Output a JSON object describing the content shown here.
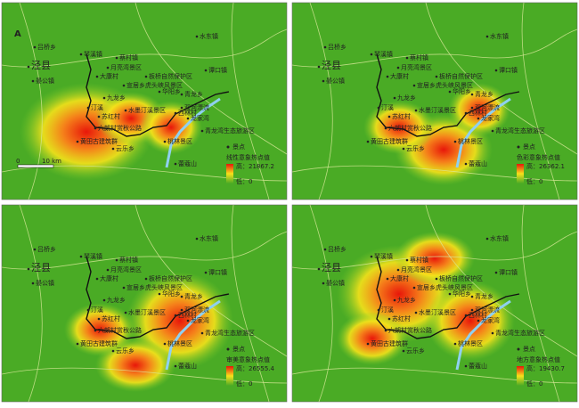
{
  "places": [
    {
      "name": "吕桥乡"
    },
    {
      "name": "琴溪镇"
    },
    {
      "name": "蔡村镇"
    },
    {
      "name": "水东镇"
    },
    {
      "name": "月亮湾景区"
    },
    {
      "name": "大康村"
    },
    {
      "name": "板桥自然保护区"
    },
    {
      "name": "泾县"
    },
    {
      "name": "宣居乡虎头峡风景区"
    },
    {
      "name": "谭口镇"
    },
    {
      "name": "晏公镇"
    },
    {
      "name": "华阳乡"
    },
    {
      "name": "青龙乡"
    },
    {
      "name": "双河漂流"
    },
    {
      "name": "九龙乡"
    },
    {
      "name": "汀溪"
    },
    {
      "name": "水墨汀溪景区"
    },
    {
      "name": "西林村"
    },
    {
      "name": "龙家湾"
    },
    {
      "name": "苏红村"
    },
    {
      "name": "六朗村赏秋公路"
    },
    {
      "name": "青龙湾生态旅游区"
    },
    {
      "name": "黄田古建筑群"
    },
    {
      "name": "云乐乡"
    },
    {
      "name": "桃林景区"
    },
    {
      "name": "蕾蔻山"
    }
  ],
  "north": "A",
  "scale": {
    "zero": "0",
    "dist": "10 km"
  },
  "panels": [
    {
      "legend_point": "景点",
      "legend_title": "线性意象热点值",
      "high": "高：21867.2",
      "low": "低：0"
    },
    {
      "legend_point": "景点",
      "legend_title": "色彩意象热点值",
      "high": "高：26362.1",
      "low": "低：0"
    },
    {
      "legend_point": "景点",
      "legend_title": "审美意象热点值",
      "high": "高：26555.4",
      "low": "低：0"
    },
    {
      "legend_point": "景点",
      "legend_title": "地方意象热点值",
      "high": "高：19430.7",
      "low": "低：0"
    }
  ]
}
